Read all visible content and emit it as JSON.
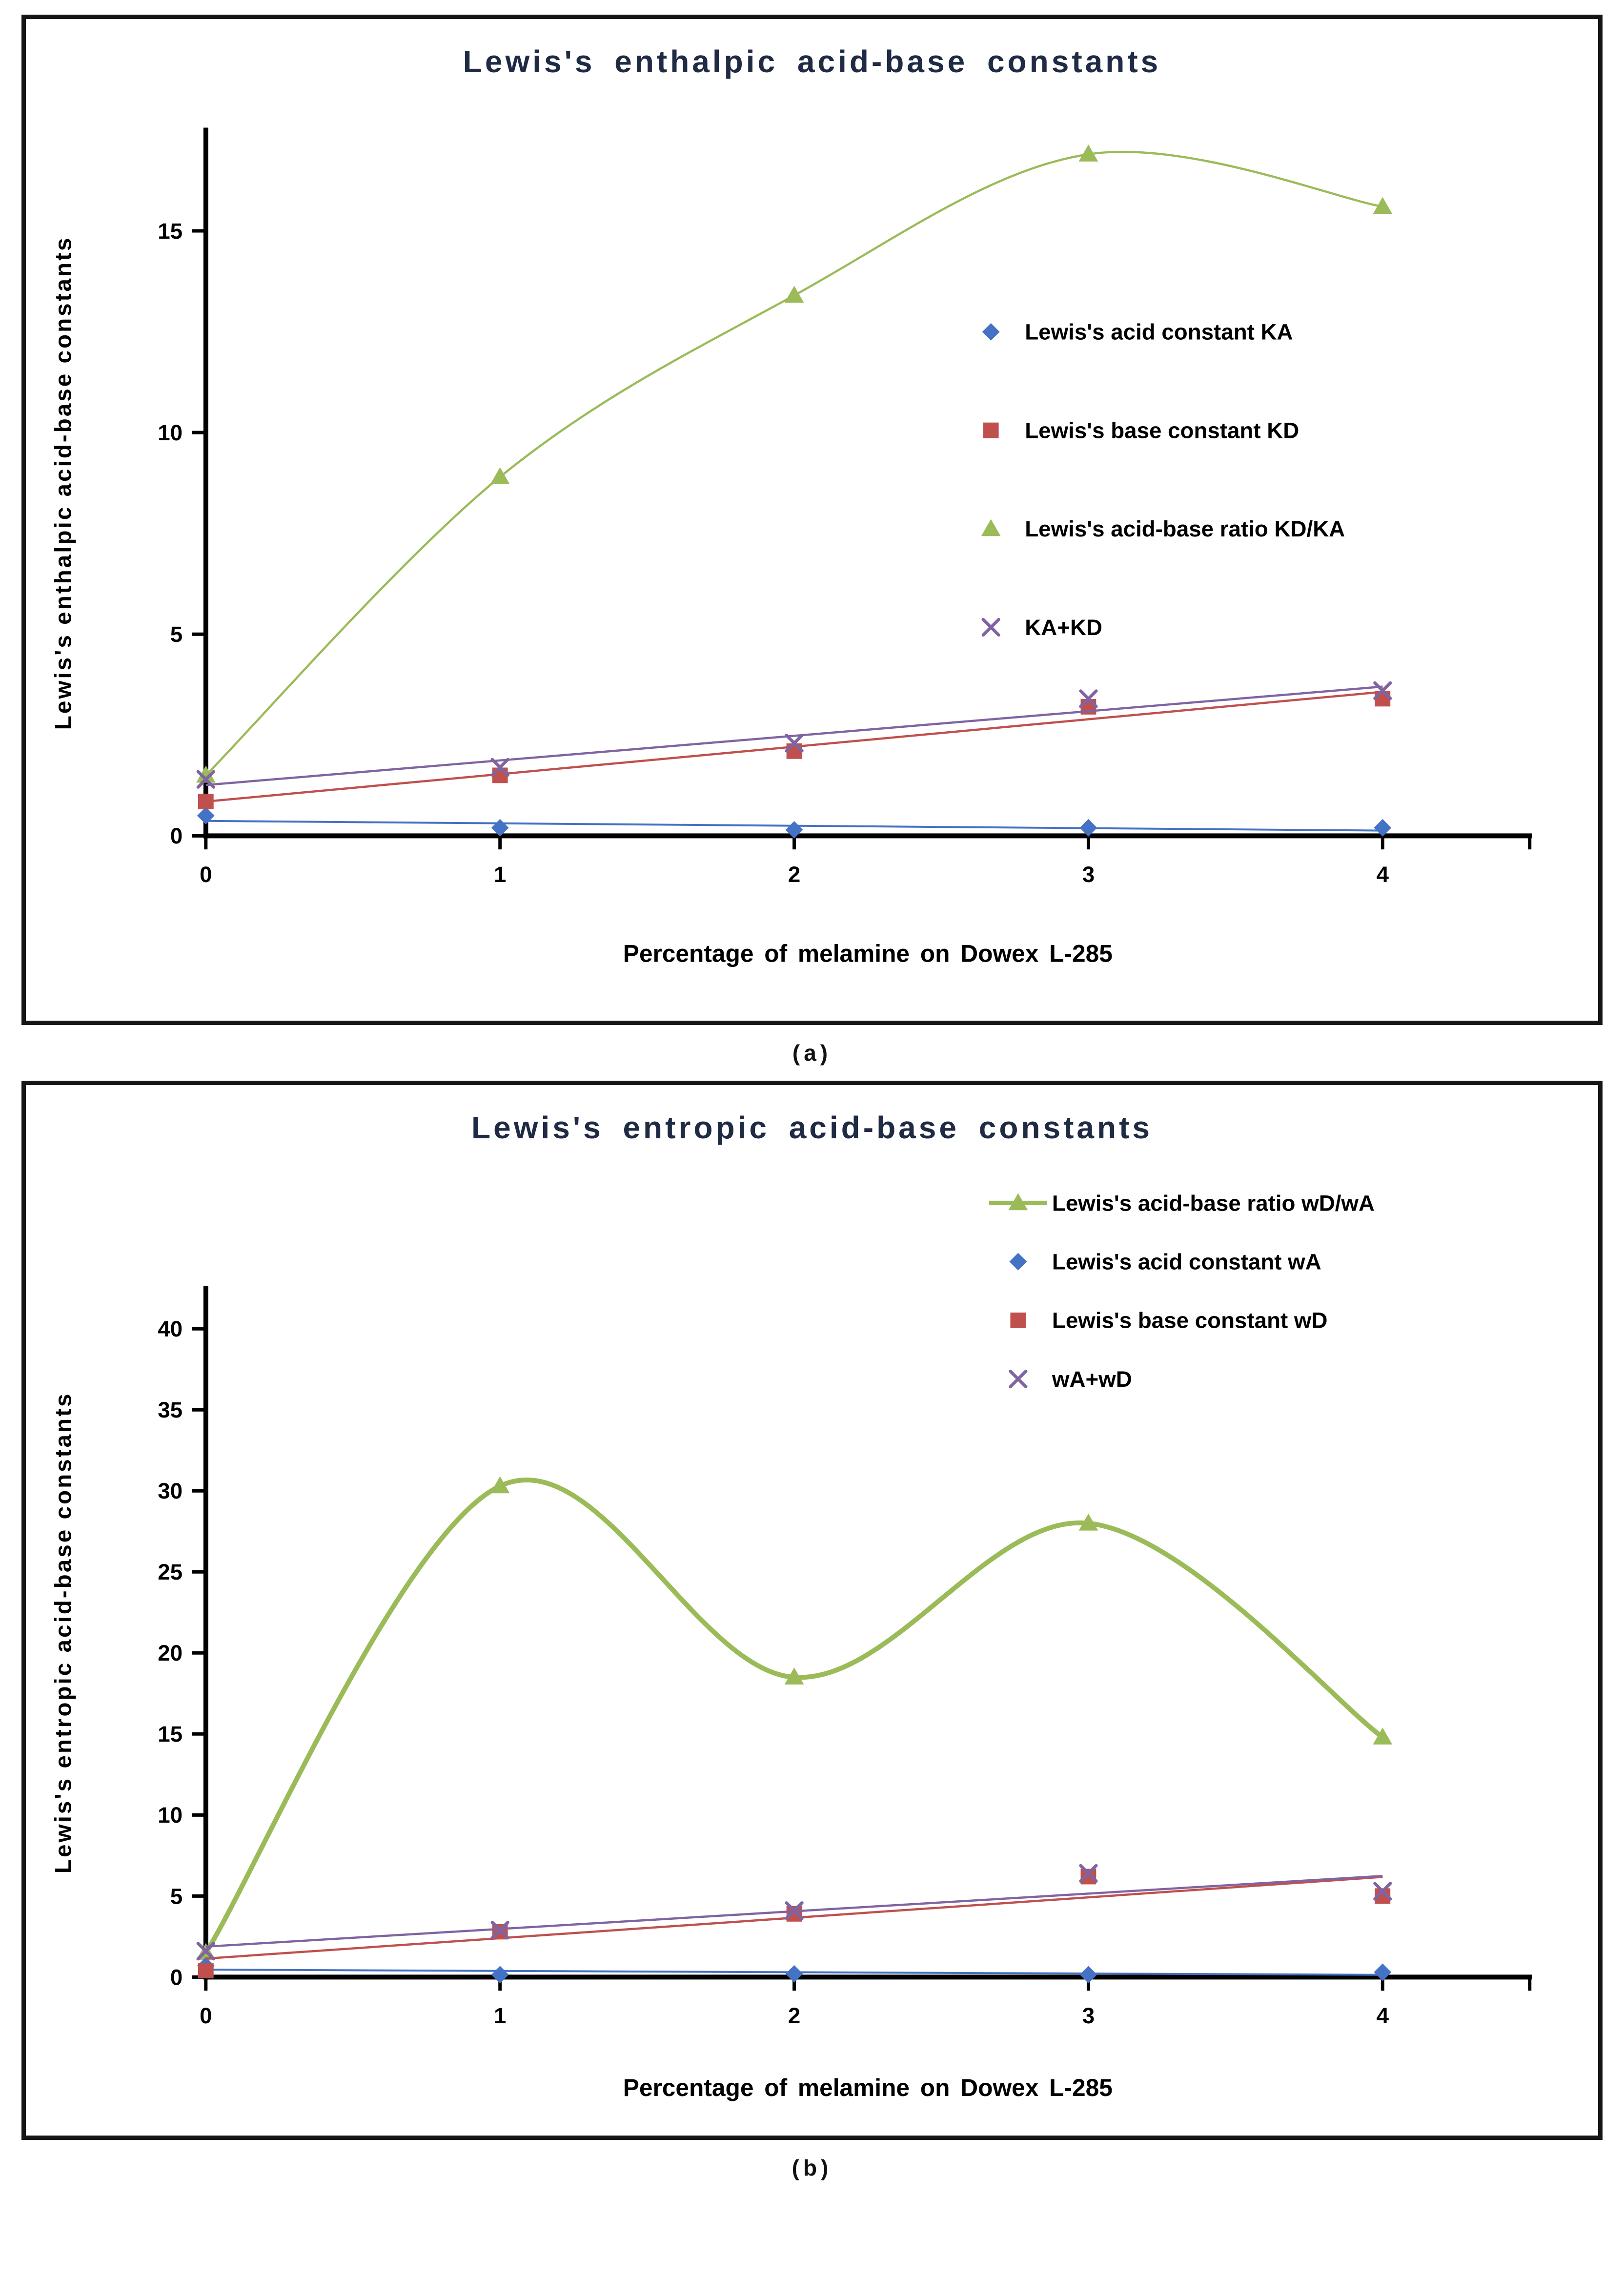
{
  "captions": {
    "a": "(a)",
    "b": "(b)"
  },
  "chart_data": [
    {
      "type": "line",
      "title": "Lewis's enthalpic acid-base constants",
      "xlabel": "Percentage of melamine on Dowex L-285",
      "ylabel": "Lewis's enthalpic acid-base constants",
      "x": [
        0,
        1,
        2,
        3,
        4
      ],
      "x_ticks": [
        0,
        1,
        2,
        3,
        4
      ],
      "xlim": [
        0,
        4.5
      ],
      "y_ticks": [
        0,
        5,
        10,
        15
      ],
      "ylim": [
        0,
        17.5
      ],
      "grid": false,
      "legend_position": "center-right",
      "series": [
        {
          "name": "Lewis's acid constant KA",
          "color": "#4472C4",
          "marker": "diamond",
          "line": "linear",
          "line_width": 4,
          "values": [
            0.5,
            0.2,
            0.15,
            0.2,
            0.2
          ]
        },
        {
          "name": "Lewis's base constant KD",
          "color": "#C0504D",
          "marker": "square",
          "line": "linear",
          "line_width": 4.5,
          "values": [
            0.85,
            1.5,
            2.1,
            3.2,
            3.4
          ]
        },
        {
          "name": "Lewis's acid-base ratio KD/KA",
          "color": "#9BBB59",
          "marker": "triangle",
          "line": "spline",
          "line_width": 4.5,
          "values": [
            1.5,
            8.9,
            13.4,
            16.9,
            15.6
          ]
        },
        {
          "name": "KA+KD",
          "color": "#8064A2",
          "marker": "x",
          "line": "linear",
          "line_width": 4.5,
          "values": [
            1.4,
            1.7,
            2.3,
            3.4,
            3.6
          ]
        }
      ]
    },
    {
      "type": "line",
      "title": "Lewis's entropic acid-base constants",
      "xlabel": "Percentage of melamine on Dowex L-285",
      "ylabel": "Lewis's entropic acid-base constants",
      "x": [
        0,
        1,
        2,
        3,
        4
      ],
      "x_ticks": [
        0,
        1,
        2,
        3,
        4
      ],
      "xlim": [
        0,
        4.5
      ],
      "y_ticks": [
        0,
        5,
        10,
        15,
        20,
        25,
        30,
        35,
        40
      ],
      "ylim": [
        0,
        42.5
      ],
      "grid": false,
      "legend_position": "top-right",
      "series": [
        {
          "name": "Lewis's acid-base ratio wD/wA",
          "color": "#9BBB59",
          "marker": "triangle",
          "line": "spline",
          "line_width": 10,
          "legend_line": true,
          "values": [
            1.5,
            30.3,
            18.5,
            28.0,
            14.8
          ]
        },
        {
          "name": "Lewis's acid constant wA",
          "color": "#4472C4",
          "marker": "diamond",
          "line": "linear",
          "line_width": 4,
          "values": [
            0.7,
            0.15,
            0.2,
            0.15,
            0.3
          ]
        },
        {
          "name": "Lewis's base constant wD",
          "color": "#C0504D",
          "marker": "square",
          "line": "linear",
          "line_width": 4.5,
          "values": [
            0.4,
            2.8,
            3.9,
            6.2,
            5.0
          ]
        },
        {
          "name": "wA+wD",
          "color": "#8064A2",
          "marker": "x",
          "line": "linear",
          "line_width": 4.5,
          "values": [
            1.6,
            2.9,
            4.1,
            6.4,
            5.3
          ]
        }
      ]
    }
  ]
}
